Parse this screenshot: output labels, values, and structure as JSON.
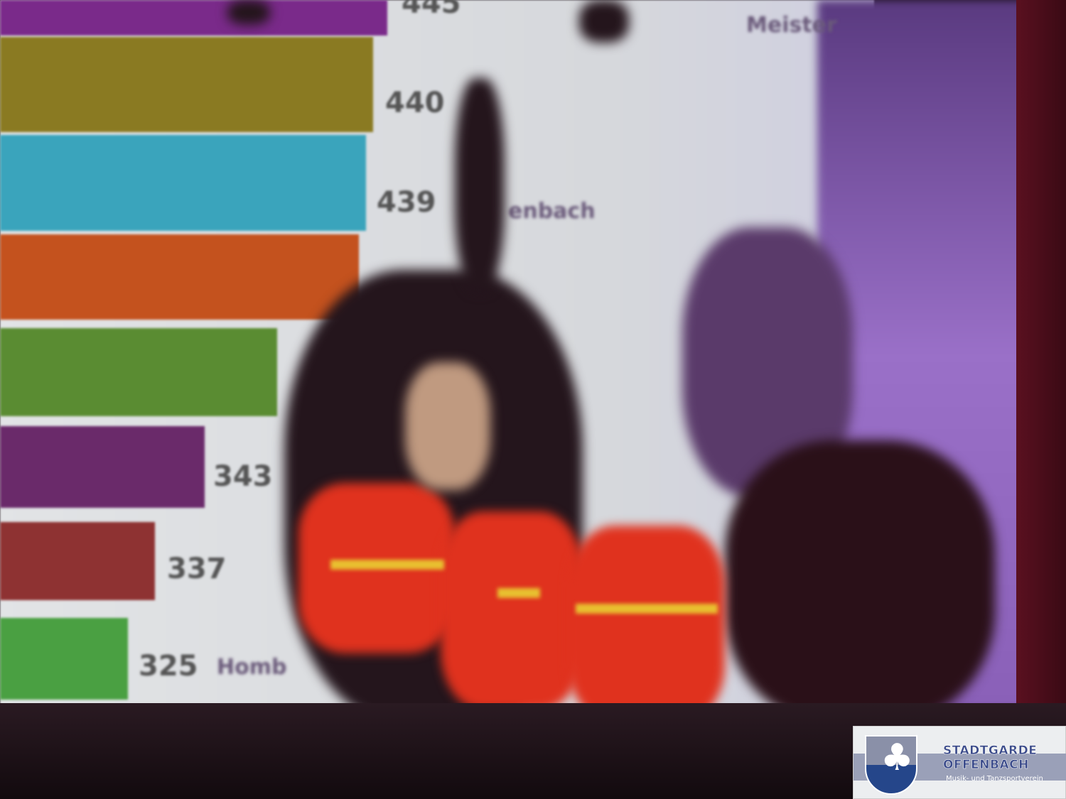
{
  "projected_chart": {
    "bars": [
      {
        "value_label": "445",
        "label": "Meister",
        "color": "#7a2a8a"
      },
      {
        "value_label": "440",
        "label": "",
        "color": "#8a7a22"
      },
      {
        "value_label": "439",
        "label": "enbach",
        "color": "#3aa4bc"
      },
      {
        "value_label": "",
        "label": "",
        "color": "#c4521e"
      },
      {
        "value_label": "",
        "label": "",
        "color": "#5a8c32"
      },
      {
        "value_label": "343",
        "label": "",
        "color": "#6a2a6a"
      },
      {
        "value_label": "337",
        "label": "",
        "color": "#8e3232"
      },
      {
        "value_label": "325",
        "label": "Homb",
        "color": "#4aa042"
      }
    ]
  },
  "logo": {
    "line1": "STADTGARDE",
    "line2": "OFFENBACH",
    "tagline": "Musik- und Tanzsportverein"
  }
}
